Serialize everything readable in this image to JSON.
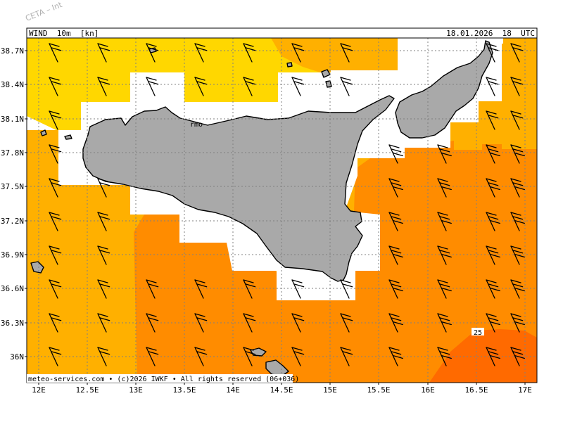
{
  "watermark": "CETA – Int",
  "header": {
    "field": "WIND  10m  [kn]",
    "datetime": "18.01.2026  18  UTC"
  },
  "footer_credit": "meteo-services.com • (c)2026 IWKF • All rights reserved (06+036)",
  "map_labels": {
    "city_fragment": "rmo",
    "contour_label": "25"
  },
  "axes": {
    "lat_labels": [
      "38.7N",
      "38.4N",
      "38.1N",
      "37.8N",
      "37.5N",
      "37.2N",
      "36.9N",
      "36.6N",
      "36.3N",
      "36N"
    ],
    "lon_labels": [
      "12E",
      "12.5E",
      "13E",
      "13.5E",
      "14E",
      "14.5E",
      "15E",
      "15.5E",
      "16E",
      "16.5E",
      "17E"
    ]
  },
  "colors": {
    "speed_10_15": "#ffd700",
    "speed_15_20": "#ffb000",
    "speed_20_25": "#ff8c00",
    "speed_25_30": "#ff6a00",
    "land": "#a9a9a9",
    "sea_low": "#ffffff"
  },
  "chart_data": {
    "type": "map",
    "variable": "WIND 10m",
    "units": "kn",
    "valid_time": "18.01.2026 18 UTC",
    "lat_range": [
      35.8,
      38.85
    ],
    "lon_range": [
      11.85,
      17.15
    ],
    "wind_direction": "northwesterly (barbs pointing NW)",
    "speed_zones": [
      {
        "color": "#ffd700",
        "region": "north of Sicily (Tyrrhenian Sea)"
      },
      {
        "color": "#ffb000",
        "region": "west of Sicily and Strait of Sicily, Gulf of Taranto"
      },
      {
        "color": "#ff8c00",
        "region": "south and east of Sicily, Ionian Sea"
      },
      {
        "color": "#ff6a00",
        "region": "south-east corner, max near 25 kn"
      }
    ]
  }
}
